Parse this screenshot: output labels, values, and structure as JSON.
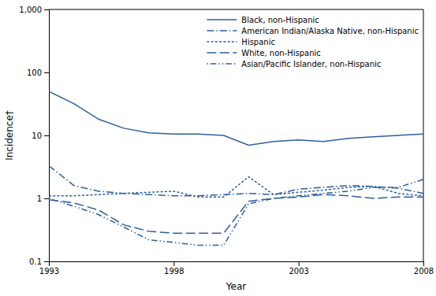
{
  "chart_data": {
    "type": "line",
    "xlabel": "Year",
    "ylabel": "Incidence†",
    "x": [
      1993,
      1994,
      1995,
      1996,
      1997,
      1998,
      1999,
      2000,
      2001,
      2002,
      2003,
      2004,
      2005,
      2006,
      2007,
      2008
    ],
    "series": [
      {
        "name": "Black, non-Hispanic",
        "color": "#2c5f9e",
        "line_style": "solid",
        "values": [
          50,
          32,
          18,
          13,
          11,
          10.5,
          10.5,
          10,
          7.0,
          8.0,
          8.5,
          8.0,
          9.0,
          9.5,
          10.0,
          10.5
        ]
      },
      {
        "name": "American Indian/Alaska Native, non-Hispanic",
        "color": "#2c5f9e",
        "line_style": "dashdot",
        "values": [
          3.3,
          1.6,
          1.3,
          1.2,
          1.15,
          1.1,
          1.1,
          1.15,
          1.2,
          1.15,
          1.4,
          1.5,
          1.6,
          1.55,
          1.45,
          1.2
        ]
      },
      {
        "name": "Hispanic",
        "color": "#2c5f9e",
        "line_style": "dotted",
        "values": [
          1.1,
          1.1,
          1.15,
          1.2,
          1.25,
          1.3,
          1.05,
          1.05,
          2.2,
          1.15,
          1.25,
          1.35,
          1.5,
          1.55,
          1.2,
          1.1
        ]
      },
      {
        "name": "White, non-Hispanic",
        "color": "#2c5f9e",
        "line_style": "dashed",
        "values": [
          0.95,
          0.85,
          0.65,
          0.38,
          0.3,
          0.28,
          0.28,
          0.28,
          0.9,
          1.0,
          1.05,
          1.15,
          1.1,
          1.0,
          1.05,
          1.05
        ]
      },
      {
        "name": "Asian/Pacific Islander, non-Hispanic",
        "color": "#2c5f9e",
        "line_style": "dashdotdot",
        "values": [
          1.0,
          0.75,
          0.55,
          0.35,
          0.22,
          0.2,
          0.18,
          0.18,
          0.82,
          1.0,
          1.1,
          1.2,
          1.3,
          1.5,
          1.5,
          2.0
        ]
      }
    ],
    "log": "y",
    "xlim": [
      1993,
      2008
    ],
    "ylim": [
      0.1,
      1000
    ],
    "xticks": [
      1993,
      1998,
      2003,
      2008
    ],
    "yticks": [
      0.1,
      1,
      10,
      100,
      {
        "value": 1000,
        "label": "1,000"
      }
    ],
    "grid": false,
    "legend": "upper right"
  }
}
